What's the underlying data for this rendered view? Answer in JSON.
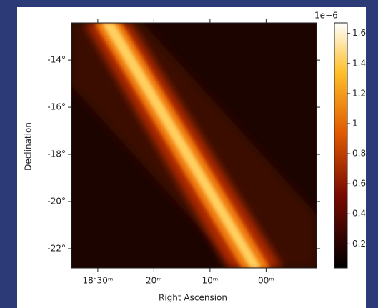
{
  "chart_data": {
    "type": "image",
    "xlabel": "Right Ascension",
    "ylabel": "Declination",
    "xlim": [
      34.7,
      -9.0
    ],
    "xticks": [
      {
        "value": 30,
        "label": "18ʰ30ᵐ"
      },
      {
        "value": 20,
        "label": "20ᵐ"
      },
      {
        "value": 10,
        "label": "10ᵐ"
      },
      {
        "value": 0,
        "label": "00ᵐ"
      }
    ],
    "ylim": [
      -22.82,
      -12.42
    ],
    "yticks": [
      {
        "value": -14,
        "label": "-14°"
      },
      {
        "value": -16,
        "label": "-16°"
      },
      {
        "value": -18,
        "label": "-18°"
      },
      {
        "value": -20,
        "label": "-20°"
      },
      {
        "value": -22,
        "label": "-22°"
      }
    ],
    "colorbar": {
      "clim": [
        0.04,
        1.67
      ],
      "offset_label": "1e−6",
      "ticks": [
        0.2,
        0.4,
        0.6,
        0.8,
        1.0,
        1.2,
        1.4,
        1.6
      ]
    }
  }
}
